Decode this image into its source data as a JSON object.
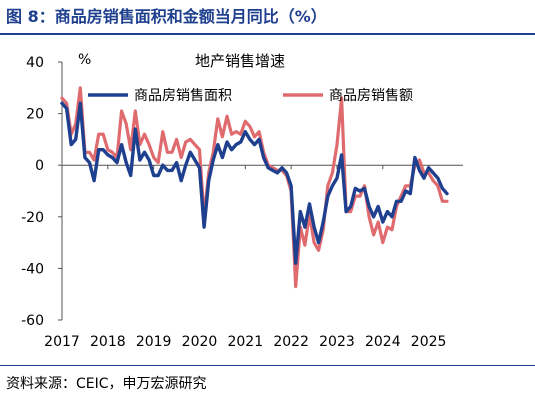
{
  "figure": {
    "title": "图 8：商品房销售面积和金额当月同比（%）",
    "source": "资料来源：CEIC，申万宏源研究"
  },
  "chart_data": {
    "type": "line",
    "title": "地产销售增速",
    "unit_label": "%",
    "ylim": [
      -60,
      40
    ],
    "yticks": [
      "40",
      "20",
      "0",
      "-20",
      "-40",
      "-60"
    ],
    "ytick_values": [
      40,
      20,
      0,
      -20,
      -40,
      -60
    ],
    "x_range": [
      2017.0,
      2025.75
    ],
    "xticks": [
      "2017",
      "2018",
      "2019",
      "2020",
      "2021",
      "2022",
      "2023",
      "2024",
      "2025"
    ],
    "xtick_values": [
      2017,
      2018,
      2019,
      2020,
      2021,
      2022,
      2023,
      2024,
      2025
    ],
    "grid": false,
    "legend_position": "top",
    "series": [
      {
        "name": "商品房销售面积",
        "color": "#1f3f8f",
        "points": [
          [
            2017.0,
            24
          ],
          [
            2017.1,
            22
          ],
          [
            2017.2,
            8
          ],
          [
            2017.3,
            10
          ],
          [
            2017.4,
            24
          ],
          [
            2017.5,
            3
          ],
          [
            2017.6,
            1
          ],
          [
            2017.7,
            -6
          ],
          [
            2017.8,
            6
          ],
          [
            2017.9,
            6
          ],
          [
            2018.0,
            4
          ],
          [
            2018.1,
            3
          ],
          [
            2018.2,
            1
          ],
          [
            2018.3,
            8
          ],
          [
            2018.4,
            1
          ],
          [
            2018.5,
            -4
          ],
          [
            2018.6,
            14
          ],
          [
            2018.7,
            2
          ],
          [
            2018.8,
            5
          ],
          [
            2018.9,
            2
          ],
          [
            2019.0,
            -4
          ],
          [
            2019.1,
            -4
          ],
          [
            2019.2,
            0
          ],
          [
            2019.3,
            -2
          ],
          [
            2019.4,
            -2
          ],
          [
            2019.5,
            1
          ],
          [
            2019.6,
            -6
          ],
          [
            2019.7,
            0
          ],
          [
            2019.8,
            5
          ],
          [
            2019.9,
            2
          ],
          [
            2020.0,
            -1
          ],
          [
            2020.1,
            -24
          ],
          [
            2020.2,
            -6
          ],
          [
            2020.3,
            2
          ],
          [
            2020.4,
            8
          ],
          [
            2020.5,
            3
          ],
          [
            2020.6,
            9
          ],
          [
            2020.7,
            6
          ],
          [
            2020.8,
            8
          ],
          [
            2020.9,
            9
          ],
          [
            2021.0,
            13
          ],
          [
            2021.1,
            10
          ],
          [
            2021.2,
            8
          ],
          [
            2021.3,
            10
          ],
          [
            2021.4,
            3
          ],
          [
            2021.5,
            -1
          ],
          [
            2021.6,
            -2
          ],
          [
            2021.7,
            -3
          ],
          [
            2021.8,
            -1
          ],
          [
            2021.9,
            -3
          ],
          [
            2022.0,
            -8
          ],
          [
            2022.1,
            -38
          ],
          [
            2022.2,
            -18
          ],
          [
            2022.3,
            -24
          ],
          [
            2022.4,
            -15
          ],
          [
            2022.5,
            -24
          ],
          [
            2022.6,
            -30
          ],
          [
            2022.7,
            -22
          ],
          [
            2022.8,
            -12
          ],
          [
            2022.9,
            -8
          ],
          [
            2023.0,
            -5
          ],
          [
            2023.1,
            4
          ],
          [
            2023.2,
            -18
          ],
          [
            2023.3,
            -16
          ],
          [
            2023.4,
            -9
          ],
          [
            2023.5,
            -10
          ],
          [
            2023.6,
            -9
          ],
          [
            2023.7,
            -16
          ],
          [
            2023.8,
            -20
          ],
          [
            2023.9,
            -16
          ],
          [
            2024.0,
            -22
          ],
          [
            2024.1,
            -18
          ],
          [
            2024.2,
            -20
          ],
          [
            2024.3,
            -14
          ],
          [
            2024.4,
            -14
          ],
          [
            2024.5,
            -10
          ],
          [
            2024.6,
            -11
          ],
          [
            2024.7,
            3
          ],
          [
            2024.8,
            -2
          ],
          [
            2024.9,
            -5
          ],
          [
            2025.0,
            -1
          ],
          [
            2025.1,
            -3
          ],
          [
            2025.2,
            -5
          ],
          [
            2025.3,
            -9
          ],
          [
            2025.4,
            -11
          ]
        ]
      },
      {
        "name": "商品房销售额",
        "color": "#e06b6e",
        "points": [
          [
            2017.0,
            26
          ],
          [
            2017.1,
            24
          ],
          [
            2017.2,
            12
          ],
          [
            2017.3,
            16
          ],
          [
            2017.4,
            30
          ],
          [
            2017.5,
            5
          ],
          [
            2017.6,
            5
          ],
          [
            2017.7,
            2
          ],
          [
            2017.8,
            12
          ],
          [
            2017.9,
            12
          ],
          [
            2018.0,
            6
          ],
          [
            2018.1,
            5
          ],
          [
            2018.2,
            3
          ],
          [
            2018.3,
            21
          ],
          [
            2018.4,
            16
          ],
          [
            2018.5,
            6
          ],
          [
            2018.6,
            21
          ],
          [
            2018.7,
            8
          ],
          [
            2018.8,
            12
          ],
          [
            2018.9,
            8
          ],
          [
            2019.0,
            3
          ],
          [
            2019.1,
            1
          ],
          [
            2019.2,
            13
          ],
          [
            2019.3,
            5
          ],
          [
            2019.4,
            5
          ],
          [
            2019.5,
            10
          ],
          [
            2019.6,
            3
          ],
          [
            2019.7,
            9
          ],
          [
            2019.8,
            10
          ],
          [
            2019.9,
            8
          ],
          [
            2020.0,
            6
          ],
          [
            2020.1,
            -20
          ],
          [
            2020.2,
            -3
          ],
          [
            2020.3,
            5
          ],
          [
            2020.4,
            18
          ],
          [
            2020.5,
            11
          ],
          [
            2020.6,
            19
          ],
          [
            2020.7,
            12
          ],
          [
            2020.8,
            13
          ],
          [
            2020.9,
            12
          ],
          [
            2021.0,
            17
          ],
          [
            2021.1,
            15
          ],
          [
            2021.2,
            11
          ],
          [
            2021.3,
            13
          ],
          [
            2021.4,
            5
          ],
          [
            2021.5,
            0
          ],
          [
            2021.6,
            -1
          ],
          [
            2021.7,
            -2
          ],
          [
            2021.8,
            -2
          ],
          [
            2021.9,
            -4
          ],
          [
            2022.0,
            -10
          ],
          [
            2022.1,
            -47
          ],
          [
            2022.2,
            -24
          ],
          [
            2022.3,
            -31
          ],
          [
            2022.4,
            -19
          ],
          [
            2022.5,
            -30
          ],
          [
            2022.6,
            -33
          ],
          [
            2022.7,
            -25
          ],
          [
            2022.8,
            -8
          ],
          [
            2022.9,
            -3
          ],
          [
            2023.0,
            8
          ],
          [
            2023.1,
            26
          ],
          [
            2023.2,
            -18
          ],
          [
            2023.3,
            -18
          ],
          [
            2023.4,
            -12
          ],
          [
            2023.5,
            -12
          ],
          [
            2023.6,
            -8
          ],
          [
            2023.7,
            -20
          ],
          [
            2023.8,
            -27
          ],
          [
            2023.9,
            -22
          ],
          [
            2024.0,
            -30
          ],
          [
            2024.1,
            -24
          ],
          [
            2024.2,
            -25
          ],
          [
            2024.3,
            -16
          ],
          [
            2024.4,
            -12
          ],
          [
            2024.5,
            -8
          ],
          [
            2024.6,
            -8
          ],
          [
            2024.7,
            0
          ],
          [
            2024.8,
            2
          ],
          [
            2024.9,
            -3
          ],
          [
            2025.0,
            -3
          ],
          [
            2025.1,
            -6
          ],
          [
            2025.2,
            -8
          ],
          [
            2025.3,
            -14
          ],
          [
            2025.4,
            -14
          ]
        ]
      }
    ]
  }
}
